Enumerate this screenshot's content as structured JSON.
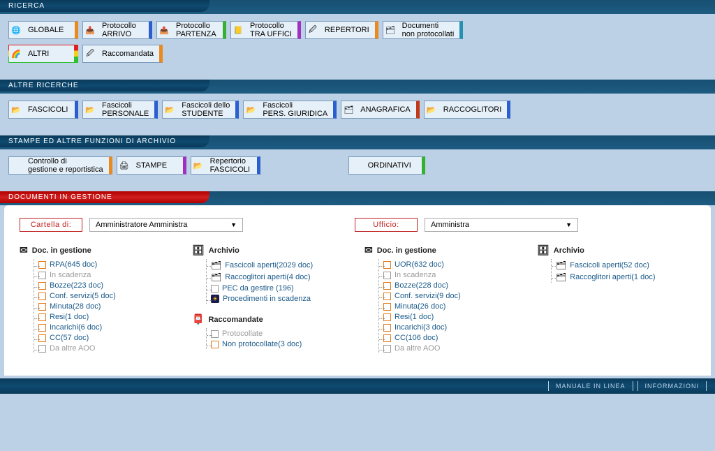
{
  "sections": {
    "ricerca": {
      "title": "RICERCA"
    },
    "altre_ricerche": {
      "title": "ALTRE RICERCHE"
    },
    "stampe": {
      "title": "STAMPE ED ALTRE FUNZIONI DI ARCHIVIO"
    },
    "documenti": {
      "title": "DOCUMENTI IN GESTIONE"
    }
  },
  "ricerca_buttons_row1": [
    {
      "label": "GLOBALE",
      "icon": "🌐",
      "accent": "accent-orange"
    },
    {
      "label": "Protocollo\nARRIVO",
      "icon": "📥",
      "accent": "accent-blue"
    },
    {
      "label": "Protocollo\nPARTENZA",
      "icon": "📤",
      "accent": "accent-green"
    },
    {
      "label": "Protocollo\nTRA UFFICI",
      "icon": "📒",
      "accent": "accent-purple"
    },
    {
      "label": "REPERTORI",
      "icon": "🖉",
      "accent": "accent-orange"
    },
    {
      "label": "Documenti\nnon protocollati",
      "icon": "🗂",
      "accent": "accent-teal"
    }
  ],
  "ricerca_buttons_row2": [
    {
      "label": "ALTRI",
      "icon": "🌈",
      "accent": "accent-r1"
    },
    {
      "label": "Raccomandata",
      "icon": "🖉",
      "accent": "accent-orange"
    }
  ],
  "altre_ricerche_buttons": [
    {
      "label": "FASCICOLI",
      "icon": "📂",
      "accent": "accent-blue"
    },
    {
      "label": "Fascicoli\nPERSONALE",
      "icon": "📂",
      "accent": "accent-blue"
    },
    {
      "label": "Fascicoli dello\nSTUDENTE",
      "icon": "📂",
      "accent": "accent-blue"
    },
    {
      "label": "Fascicoli\nPERS. GIURIDICA",
      "icon": "📂",
      "accent": "accent-blue"
    },
    {
      "label": "ANAGRAFICA",
      "icon": "🗂",
      "accent": "accent-red"
    },
    {
      "label": "RACCOGLITORI",
      "icon": "📂",
      "accent": "accent-blue"
    }
  ],
  "stampe_buttons": [
    {
      "label": "Controllo di\ngestione e reportistica",
      "icon": "",
      "accent": "accent-orange"
    },
    {
      "label": "STAMPE",
      "icon": "🖨",
      "accent": "accent-purple"
    },
    {
      "label": "Repertorio\nFASCICOLI",
      "icon": "📂",
      "accent": "accent-blue"
    },
    {
      "label": "ORDINATIVI",
      "icon": "",
      "accent": "accent-green"
    }
  ],
  "selectors": {
    "cartella_label": "Cartella di:",
    "cartella_value": "Amministratore Amministra",
    "ufficio_label": "Ufficio:",
    "ufficio_value": "Amministra"
  },
  "left_panel": {
    "doc_gestione": {
      "title": "Doc. in gestione",
      "items": [
        {
          "label": "RPA(645 doc)",
          "orange": true
        },
        {
          "label": "In scadenza",
          "muted": true
        },
        {
          "label": "Bozze(223 doc)",
          "orange": true
        },
        {
          "label": "Conf. servizi(5 doc)",
          "orange": true
        },
        {
          "label": "Minuta(28 doc)",
          "orange": true
        },
        {
          "label": "Resi(1 doc)",
          "orange": true
        },
        {
          "label": "Incarichi(6 doc)",
          "orange": true
        },
        {
          "label": "CC(57 doc)",
          "orange": true
        },
        {
          "label": "Da altre AOO",
          "muted": true
        }
      ]
    },
    "archivio": {
      "title": "Archivio",
      "items": [
        {
          "label": "Fascicoli aperti(2029 doc)",
          "icon": "🗂"
        },
        {
          "label": "Raccoglitori aperti(4 doc)",
          "icon": "🗂"
        },
        {
          "label": "PEC da gestire (196)"
        },
        {
          "label": "Procedimenti in scadenza",
          "blackico": true,
          "glyph": "☀"
        }
      ]
    },
    "raccomandate": {
      "title": "Raccomandate",
      "items": [
        {
          "label": "Protocollate",
          "muted": true
        },
        {
          "label": "Non protocollate(3 doc)",
          "orange": true
        }
      ]
    }
  },
  "right_panel": {
    "doc_gestione": {
      "title": "Doc. in gestione",
      "items": [
        {
          "label": "UOR(632 doc)",
          "orange": true
        },
        {
          "label": "In scadenza",
          "muted": true
        },
        {
          "label": "Bozze(228 doc)",
          "orange": true
        },
        {
          "label": "Conf. servizi(9 doc)",
          "orange": true
        },
        {
          "label": "Minuta(26 doc)",
          "orange": true
        },
        {
          "label": "Resi(1 doc)",
          "orange": true
        },
        {
          "label": "Incarichi(3 doc)",
          "orange": true
        },
        {
          "label": "CC(106 doc)",
          "orange": true
        },
        {
          "label": "Da altre AOO",
          "muted": true
        }
      ]
    },
    "archivio": {
      "title": "Archivio",
      "items": [
        {
          "label": "Fascicoli aperti(52 doc)",
          "icon": "🗂"
        },
        {
          "label": "Raccoglitori aperti(1 doc)",
          "icon": "🗂"
        }
      ]
    }
  },
  "footer": {
    "manuale": "MANUALE IN LINEA",
    "info": "INFORMAZIONI"
  },
  "colors": {
    "bg": "#bcd0e6",
    "header_dark": "#0e4a70",
    "header_red": "#c02020",
    "link": "#1a5a8a"
  }
}
